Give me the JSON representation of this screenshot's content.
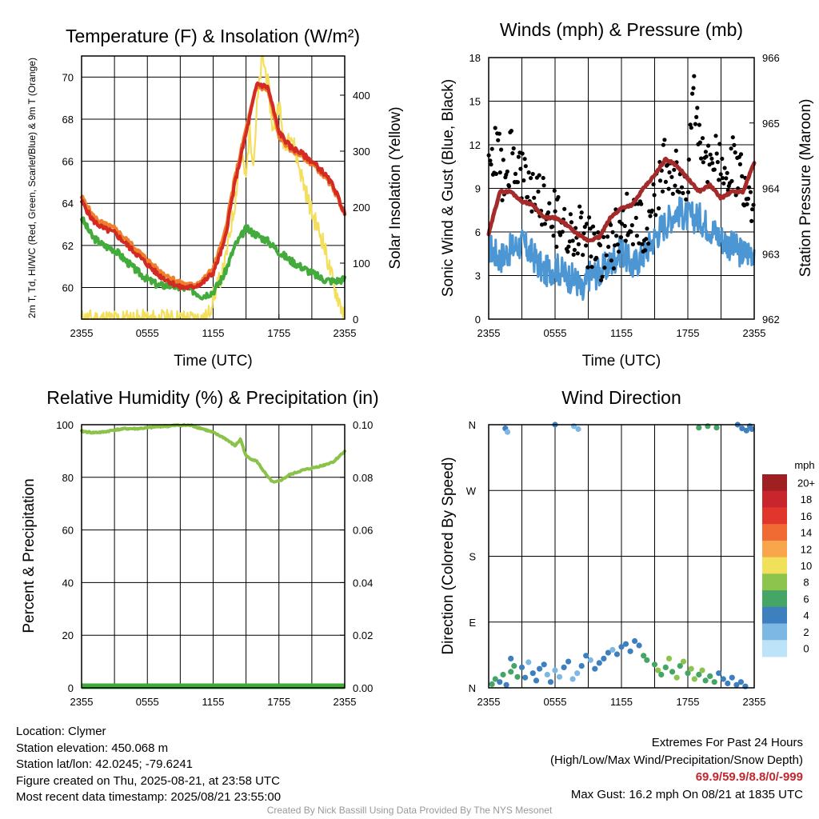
{
  "chart_data": [
    {
      "type": "line",
      "title": "Temperature (F) & Insolation (W/m²)",
      "xlabel": "Time (UTC)",
      "ylabel": "2m T, Td, HI/WC (Red, Green, Scarlet/Blue) & 9m T (Orange)",
      "y2label": "Solar Insolation (Yellow)",
      "x_ticks": [
        "2355",
        "0555",
        "1155",
        "1755",
        "2355"
      ],
      "x_range_hours": [
        0,
        24
      ],
      "ylim": [
        58.5,
        71
      ],
      "y_ticks": [
        60,
        62,
        64,
        66,
        68,
        70
      ],
      "y2lim": [
        0,
        470
      ],
      "y2_ticks": [
        0,
        100,
        200,
        300,
        400
      ],
      "grid": true,
      "series": [
        {
          "name": "9m T (Orange)",
          "color": "#f07f2b",
          "x_hours": [
            0,
            1,
            2,
            3,
            4,
            5,
            6,
            7,
            8,
            9,
            10,
            11,
            12,
            13,
            14,
            15,
            16,
            17,
            18,
            19,
            20,
            21,
            22,
            23,
            24
          ],
          "values": [
            64.3,
            63.4,
            63.0,
            62.8,
            62.3,
            61.8,
            61.3,
            60.8,
            60.5,
            60.2,
            60.1,
            60.3,
            60.9,
            62.4,
            65.2,
            67.5,
            69.6,
            69.4,
            67.2,
            66.6,
            66.3,
            65.9,
            65.4,
            64.7,
            63.5
          ]
        },
        {
          "name": "2m T (Red)",
          "color": "#d42a24",
          "x_hours": [
            0,
            1,
            2,
            3,
            4,
            5,
            6,
            7,
            8,
            9,
            10,
            11,
            12,
            13,
            14,
            15,
            16,
            17,
            18,
            19,
            20,
            21,
            22,
            23,
            24
          ],
          "values": [
            64.1,
            63.2,
            62.8,
            62.6,
            62.1,
            61.6,
            61.1,
            60.6,
            60.3,
            60.0,
            60.0,
            60.2,
            60.7,
            62.1,
            65.0,
            67.3,
            69.7,
            69.5,
            67.4,
            66.7,
            66.4,
            66.0,
            65.5,
            64.8,
            63.5
          ]
        },
        {
          "name": "Td (Green)",
          "color": "#43ab3c",
          "x_hours": [
            0,
            1,
            2,
            3,
            4,
            5,
            6,
            7,
            8,
            9,
            10,
            11,
            12,
            13,
            14,
            15,
            16,
            17,
            18,
            19,
            20,
            21,
            22,
            23,
            24
          ],
          "values": [
            63.3,
            62.4,
            62.0,
            61.8,
            61.3,
            60.8,
            60.4,
            60.1,
            60.1,
            60.0,
            59.9,
            59.6,
            59.8,
            60.6,
            62.0,
            62.8,
            62.5,
            62.2,
            61.7,
            61.3,
            61.0,
            60.7,
            60.4,
            60.3,
            60.4
          ]
        },
        {
          "name": "Solar Insolation (Yellow)",
          "color": "#f3df5c",
          "axis": "y2",
          "x_hours": [
            0,
            6,
            9,
            10.5,
            11.5,
            12,
            13,
            13.5,
            14,
            14.5,
            15,
            15.3,
            15.7,
            16,
            16.5,
            17,
            17.5,
            18,
            18.5,
            19,
            20,
            21,
            22,
            23,
            24
          ],
          "values": [
            0,
            0,
            0,
            0,
            2,
            40,
            90,
            150,
            210,
            300,
            250,
            340,
            280,
            380,
            470,
            420,
            330,
            390,
            300,
            340,
            260,
            190,
            140,
            60,
            5
          ]
        }
      ]
    },
    {
      "type": "scatter",
      "title": "Winds (mph) & Pressure (mb)",
      "xlabel": "Time (UTC)",
      "ylabel": "Sonic Wind & Gust (Blue, Black)",
      "y2label": "Station Pressure (Maroon)",
      "x_ticks": [
        "2355",
        "0555",
        "1155",
        "1755",
        "2355"
      ],
      "x_range_hours": [
        0,
        24
      ],
      "ylim": [
        0,
        18
      ],
      "y_ticks": [
        0,
        3,
        6,
        9,
        12,
        15,
        18
      ],
      "y2lim": [
        962,
        966
      ],
      "y2_ticks": [
        962,
        963,
        964,
        965,
        966
      ],
      "grid": true,
      "series": [
        {
          "name": "Sonic Wind (Blue)",
          "color": "#4d96d4",
          "x_hours": [
            0,
            1,
            2,
            3,
            4,
            5,
            6,
            7,
            8,
            8.5,
            9,
            10,
            11,
            12,
            13,
            14,
            15,
            15.5,
            16,
            17,
            18,
            19,
            20,
            21,
            22,
            23,
            24
          ],
          "values": [
            5.0,
            4.2,
            4.8,
            5.2,
            4.4,
            3.2,
            3.6,
            3.0,
            2.6,
            1.6,
            3.0,
            3.2,
            3.8,
            4.8,
            3.6,
            4.5,
            5.6,
            6.2,
            6.6,
            7.5,
            7.0,
            7.0,
            6.3,
            5.6,
            5.0,
            4.5,
            4.8
          ]
        },
        {
          "name": "Gust (Black)",
          "color": "#000000",
          "x_hours": [
            0,
            0.5,
            1,
            1.5,
            2,
            3,
            4,
            5,
            6,
            7,
            8,
            9,
            10,
            11,
            12,
            13,
            14,
            15,
            16,
            17,
            18,
            18.5,
            19,
            20,
            21,
            22,
            23,
            24
          ],
          "values": [
            9.5,
            12.0,
            10.8,
            9.0,
            11.5,
            9.5,
            8.5,
            8.0,
            7.0,
            6.0,
            6.5,
            5.5,
            4.5,
            5.0,
            6.5,
            7.0,
            6.0,
            8.5,
            11.0,
            9.5,
            10.0,
            15.5,
            12.5,
            11.0,
            10.5,
            11.0,
            9.5,
            8.0
          ]
        },
        {
          "name": "Station Pressure (Maroon)",
          "color": "#a52a2a",
          "axis": "y2",
          "x_hours": [
            0,
            1,
            2,
            3,
            4,
            5,
            6,
            7,
            8,
            9,
            10,
            11,
            12,
            13,
            14,
            15,
            16,
            17,
            18,
            19,
            20,
            21,
            22,
            23,
            24
          ],
          "values": [
            963.3,
            963.95,
            963.95,
            963.8,
            963.75,
            963.55,
            963.55,
            963.45,
            963.3,
            963.2,
            963.25,
            963.55,
            963.7,
            963.75,
            964.0,
            964.2,
            964.45,
            964.35,
            964.15,
            963.95,
            964.05,
            963.85,
            963.95,
            963.95,
            964.4
          ]
        }
      ]
    },
    {
      "type": "line",
      "title": "Relative Humidity (%) & Precipitation (in)",
      "xlabel": "",
      "ylabel": "Percent & Precipitation",
      "x_ticks": [
        "2355",
        "0555",
        "1155",
        "1755",
        "2355"
      ],
      "x_range_hours": [
        0,
        24
      ],
      "ylim": [
        0,
        100
      ],
      "y_ticks": [
        0,
        20,
        40,
        60,
        80,
        100
      ],
      "y2lim": [
        0,
        0.1
      ],
      "y2_ticks": [
        "0.00",
        "0.02",
        "0.04",
        "0.06",
        "0.08",
        "0.10"
      ],
      "grid": true,
      "series": [
        {
          "name": "Relative Humidity",
          "color": "#8bc34a",
          "x_hours": [
            0,
            1,
            2,
            3,
            4,
            5,
            6,
            7,
            8,
            9,
            10,
            11,
            12,
            13,
            14,
            14.5,
            15,
            16,
            17,
            17.5,
            18,
            19,
            20,
            21,
            22,
            23,
            24
          ],
          "values": [
            97.5,
            97,
            97.2,
            98,
            98.5,
            98.5,
            98.8,
            99.3,
            99.5,
            99.8,
            99.7,
            98.5,
            97,
            95,
            92,
            94.5,
            88,
            86,
            80,
            78,
            78.5,
            81,
            82.5,
            83.5,
            84.5,
            86,
            90
          ]
        },
        {
          "name": "Precipitation",
          "color": "#43ab3c",
          "x_hours": [
            0,
            24
          ],
          "values": [
            0,
            0
          ]
        }
      ]
    },
    {
      "type": "scatter",
      "title": "Wind Direction",
      "xlabel": "",
      "ylabel": "Direction (Colored By Speed)",
      "x_ticks": [
        "2355",
        "0555",
        "1155",
        "1755",
        "2355"
      ],
      "x_range_hours": [
        0,
        24
      ],
      "y_ticks": [
        "N",
        "E",
        "S",
        "W",
        "N"
      ],
      "y_range_deg": [
        0,
        360
      ],
      "colorbar_title": "mph",
      "colorbar_labels": [
        "20+",
        "18",
        "16",
        "14",
        "12",
        "10",
        "8",
        "6",
        "4",
        "2",
        "0"
      ],
      "colorbar_colors": [
        "#a01f22",
        "#c9252c",
        "#e0362c",
        "#f06a34",
        "#f8a54c",
        "#f1e05a",
        "#8cc44e",
        "#45a566",
        "#3e7fbf",
        "#7db7e3",
        "#bde3f8"
      ],
      "grid": true,
      "series": [
        {
          "name": "Direction",
          "x_hours": [
            0.3,
            0.6,
            1.0,
            1.3,
            1.6,
            2.0,
            2.3,
            2.6,
            2.0,
            3.0,
            3.3,
            3.6,
            4.0,
            4.3,
            4.6,
            5.0,
            5.3,
            5.6,
            6.0,
            6.4,
            6.8,
            7.2,
            7.6,
            8.0,
            8.4,
            8.8,
            9.2,
            9.6,
            10.0,
            10.4,
            10.8,
            11.2,
            11.6,
            12.0,
            12.4,
            12.8,
            13.2,
            13.6,
            14.0,
            14.3,
            15.0,
            15.3,
            15.6,
            16.0,
            16.3,
            16.6,
            17.0,
            17.3,
            17.6,
            18.0,
            18.3,
            18.6,
            19.0,
            19.3,
            19.6,
            20.0,
            20.4,
            20.8,
            21.2,
            21.6,
            22.0,
            22.4,
            22.8,
            23.2,
            1.5,
            1.7,
            6.0,
            7.7,
            8.1,
            19.0,
            19.8,
            20.6,
            22.5,
            22.9,
            23.3,
            23.6,
            23.8
          ],
          "deg": [
            5,
            12,
            8,
            18,
            4,
            22,
            30,
            15,
            40,
            28,
            14,
            35,
            20,
            10,
            26,
            32,
            18,
            8,
            24,
            15,
            28,
            36,
            12,
            20,
            30,
            44,
            38,
            26,
            34,
            40,
            48,
            52,
            46,
            56,
            60,
            50,
            64,
            58,
            44,
            38,
            32,
            24,
            18,
            28,
            40,
            22,
            14,
            30,
            36,
            20,
            26,
            12,
            18,
            24,
            10,
            16,
            8,
            20,
            12,
            6,
            14,
            4,
            8,
            2,
            355,
            350,
            360,
            358,
            354,
            356,
            358,
            356,
            360,
            355,
            352,
            358,
            354
          ],
          "speed": [
            6,
            5,
            3,
            6,
            4,
            6,
            6,
            5,
            3,
            4,
            3,
            2,
            4,
            3,
            4,
            3,
            2,
            3,
            2,
            2,
            3,
            3,
            2,
            2,
            3,
            3,
            2,
            3,
            3,
            3,
            3,
            2,
            4,
            4,
            3,
            4,
            3,
            4,
            6,
            6,
            6,
            7,
            6,
            6,
            7,
            6,
            7,
            6,
            8,
            6,
            7,
            8,
            6,
            7,
            6,
            6,
            5,
            4,
            4,
            4,
            3,
            4,
            4,
            4,
            4,
            2,
            4,
            2,
            2,
            6,
            6,
            6,
            4,
            3,
            4,
            3,
            4
          ]
        }
      ]
    }
  ],
  "info": {
    "location": "Location: Clymer",
    "elevation": "Station elevation: 450.068 m",
    "latlon": "Station lat/lon: 42.0245; -79.6241",
    "created": "Figure created on Thu, 2025-08-21, at 23:58 UTC",
    "recent": "Most recent data timestamp: 2025/08/21 23:55:00"
  },
  "extremes": {
    "title": "Extremes For Past 24 Hours",
    "subtitle": "(High/Low/Max Wind/Precipitation/Snow Depth)",
    "values": "69.9/59.9/8.8/0/-999",
    "gust": "Max Gust: 16.2 mph On 08/21 at 1835 UTC"
  },
  "credit": "Created By Nick Bassill Using Data Provided By The NYS Mesonet"
}
